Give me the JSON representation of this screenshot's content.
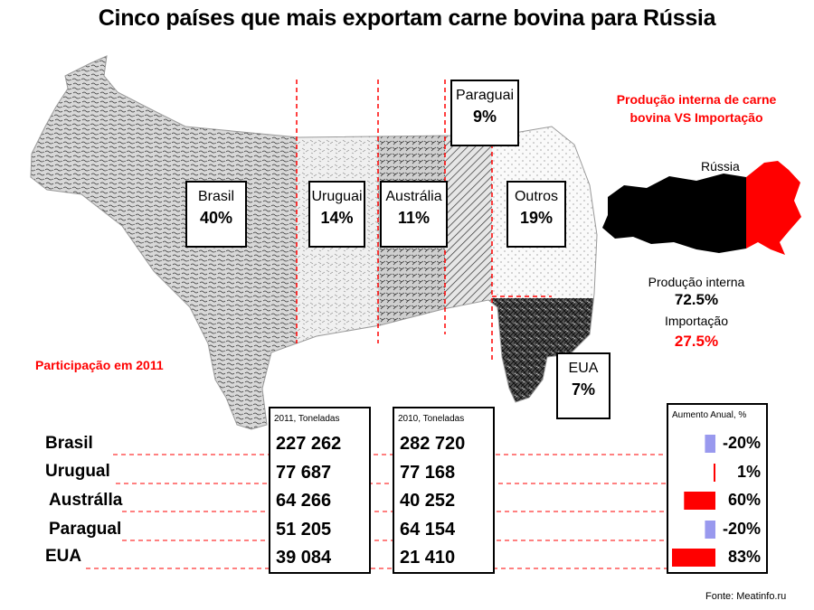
{
  "title": "Cinco países que mais exportam carne bovina para Rússia",
  "participation_label": "Participação em 2011",
  "source": "Fonte: Meatinfo.ru",
  "russia": {
    "heading": "Produção interna de carne bovina VS Importação",
    "country": "Rússia",
    "production_label": "Produção interna",
    "production_value": "72.5%",
    "import_label": "Importação",
    "import_value": "27.5%",
    "colors": {
      "production": "#000000",
      "import": "#ff0000"
    }
  },
  "segments": [
    {
      "name": "Brasil",
      "pct": "40%"
    },
    {
      "name": "Uruguai",
      "pct": "14%"
    },
    {
      "name": "Austrália",
      "pct": "11%"
    },
    {
      "name": "Paraguai",
      "pct": "9%"
    },
    {
      "name": "Outros",
      "pct": "19%"
    },
    {
      "name": "EUA",
      "pct": "7%"
    }
  ],
  "table": {
    "col_2011_header": "2011, Toneladas",
    "col_2010_header": "2010, Toneladas",
    "growth_header": "Aumento Anual, %",
    "rows": [
      {
        "country": "Brasil",
        "v2011": "227 262",
        "v2010": "282 720",
        "growth": "-20%"
      },
      {
        "country": "Urugual",
        "v2011": "77 687",
        "v2010": "77 168",
        "growth": "1%"
      },
      {
        "country": "Austrálla",
        "v2011": "64 266",
        "v2010": "40 252",
        "growth": "60%"
      },
      {
        "country": "Paragual",
        "v2011": "51 205",
        "v2010": "64 154",
        "growth": "-20%"
      },
      {
        "country": "EUA",
        "v2011": "39 084",
        "v2010": "21 410",
        "growth": "83%"
      }
    ]
  },
  "chart_data": [
    {
      "type": "table",
      "title": "Cinco países que mais exportam carne bovina para Rússia",
      "categories": [
        "Brasil",
        "Urugual",
        "Austrálla",
        "Paragual",
        "EUA"
      ],
      "series": [
        {
          "name": "2011, Toneladas",
          "values": [
            227262,
            77687,
            64266,
            51205,
            39084
          ]
        },
        {
          "name": "2010, Toneladas",
          "values": [
            282720,
            77168,
            40252,
            64154,
            21410
          ]
        },
        {
          "name": "Aumento Anual, %",
          "values": [
            -20,
            1,
            60,
            -20,
            83
          ]
        }
      ],
      "colors": {
        "positive": "#ff0000",
        "negative": "#9999ee"
      }
    },
    {
      "type": "bar",
      "title": "Participação em 2011",
      "categories": [
        "Brasil",
        "Uruguai",
        "Austrália",
        "Paraguai",
        "Outros",
        "EUA"
      ],
      "values": [
        40,
        14,
        11,
        9,
        19,
        7
      ]
    },
    {
      "type": "pie",
      "title": "Produção interna de carne bovina VS Importação",
      "categories": [
        "Produção interna",
        "Importação"
      ],
      "values": [
        72.5,
        27.5
      ],
      "colors": [
        "#000000",
        "#ff0000"
      ]
    }
  ]
}
